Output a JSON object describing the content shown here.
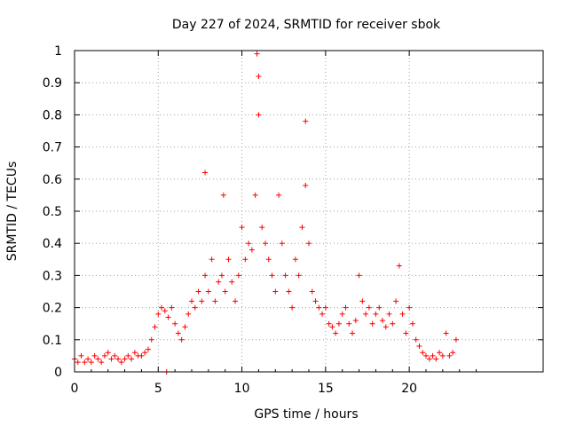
{
  "chart_data": {
    "type": "scatter",
    "title": "Day 227 of 2024, SRMTID for receiver sbok",
    "xlabel": "GPS time / hours",
    "ylabel": "SRMTID / TECUs",
    "xlim": [
      0,
      28
    ],
    "ylim": [
      0,
      1
    ],
    "xticks": [
      0,
      5,
      10,
      15,
      20
    ],
    "xtick_labels": [
      "0",
      "5",
      "10",
      "15",
      "20"
    ],
    "yticks": [
      0,
      0.1,
      0.2,
      0.3,
      0.4,
      0.5,
      0.6,
      0.7,
      0.8,
      0.9,
      1
    ],
    "ytick_labels": [
      "0",
      "0.1",
      "0.2",
      "0.3",
      "0.4",
      "0.5",
      "0.6",
      "0.7",
      "0.8",
      "0.9",
      "1"
    ],
    "grid": true,
    "marker": "+",
    "series": [
      {
        "name": "SRMTID sbok",
        "color": "#ff0000",
        "x": [
          0.0,
          0.2,
          0.4,
          0.6,
          0.8,
          1.0,
          1.2,
          1.4,
          1.6,
          1.8,
          2.0,
          2.2,
          2.4,
          2.6,
          2.8,
          3.0,
          3.2,
          3.4,
          3.6,
          3.8,
          4.0,
          4.2,
          4.4,
          4.6,
          4.8,
          5.0,
          5.2,
          5.4,
          5.5,
          5.6,
          5.8,
          6.0,
          6.2,
          6.4,
          6.6,
          6.8,
          7.0,
          7.2,
          7.4,
          7.6,
          7.8,
          7.8,
          8.0,
          8.2,
          8.4,
          8.6,
          8.8,
          8.9,
          9.0,
          9.2,
          9.4,
          9.6,
          9.8,
          10.0,
          10.2,
          10.4,
          10.6,
          10.8,
          10.9,
          11.0,
          11.0,
          11.2,
          11.4,
          11.6,
          11.8,
          12.0,
          12.2,
          12.4,
          12.6,
          12.8,
          13.0,
          13.2,
          13.4,
          13.6,
          13.8,
          13.8,
          14.0,
          14.2,
          14.4,
          14.6,
          14.8,
          15.0,
          15.2,
          15.4,
          15.6,
          15.8,
          16.0,
          16.2,
          16.4,
          16.6,
          16.8,
          17.0,
          17.2,
          17.4,
          17.6,
          17.8,
          18.0,
          18.2,
          18.4,
          18.6,
          18.8,
          19.0,
          19.2,
          19.4,
          19.6,
          19.8,
          20.0,
          20.2,
          20.4,
          20.6,
          20.8,
          21.0,
          21.2,
          21.4,
          21.6,
          21.8,
          22.0,
          22.2,
          22.4,
          22.6,
          22.8
        ],
        "y": [
          0.04,
          0.03,
          0.05,
          0.03,
          0.04,
          0.03,
          0.05,
          0.04,
          0.03,
          0.05,
          0.06,
          0.04,
          0.05,
          0.04,
          0.03,
          0.04,
          0.05,
          0.04,
          0.06,
          0.05,
          0.05,
          0.06,
          0.07,
          0.1,
          0.14,
          0.18,
          0.2,
          0.19,
          0.0,
          0.17,
          0.2,
          0.15,
          0.12,
          0.1,
          0.14,
          0.18,
          0.22,
          0.2,
          0.25,
          0.22,
          0.62,
          0.3,
          0.25,
          0.35,
          0.22,
          0.28,
          0.3,
          0.55,
          0.25,
          0.35,
          0.28,
          0.22,
          0.3,
          0.45,
          0.35,
          0.4,
          0.38,
          0.55,
          0.99,
          0.92,
          0.8,
          0.45,
          0.4,
          0.35,
          0.3,
          0.25,
          0.55,
          0.4,
          0.3,
          0.25,
          0.2,
          0.35,
          0.3,
          0.45,
          0.78,
          0.58,
          0.4,
          0.25,
          0.22,
          0.2,
          0.18,
          0.2,
          0.15,
          0.14,
          0.12,
          0.15,
          0.18,
          0.2,
          0.15,
          0.12,
          0.16,
          0.3,
          0.22,
          0.18,
          0.2,
          0.15,
          0.18,
          0.2,
          0.16,
          0.14,
          0.18,
          0.15,
          0.22,
          0.33,
          0.18,
          0.12,
          0.2,
          0.15,
          0.1,
          0.08,
          0.06,
          0.05,
          0.04,
          0.05,
          0.04,
          0.06,
          0.05,
          0.12,
          0.05,
          0.06,
          0.1
        ]
      }
    ]
  }
}
